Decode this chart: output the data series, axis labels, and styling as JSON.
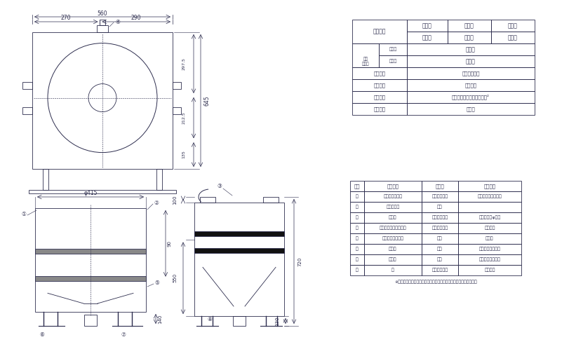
{
  "bg_color": "#ffffff",
  "line_color": "#2d2d4e",
  "table1": {
    "title": "外形寸法",
    "col_headers": [
      "間　口",
      "奥　行",
      "高　さ"
    ],
    "col_values": [
      "５６０",
      "６４５",
      "７２０"
    ],
    "rows": [
      {
        "label1": "水道",
        "label2": "給水口",
        "value": "２０Ａ"
      },
      {
        "label1": "接続口",
        "label2": "排水口",
        "value": "２０Ａ"
      },
      {
        "label1": "洗米能力",
        "label2": "",
        "value": "２２ｋｇ／回"
      },
      {
        "label1": "洗米時間",
        "label2": "",
        "value": "３～４分"
      },
      {
        "label1": "作動水圧",
        "label2": "",
        "value": "０．８～１．５ｋｇ／ｃｍ²"
      },
      {
        "label1": "製品重量",
        "label2": "",
        "value": "９ｋｇ"
      }
    ]
  },
  "table2": {
    "col_headers": [
      "番号",
      "品　　名",
      "材　質",
      "備　　考"
    ],
    "rows": [
      [
        "１",
        "本体（洗米槽）",
        "ＳＵＳ４３０",
        "ｔ０．８，ｔ１．０"
      ],
      [
        "２",
        "切換バルブ",
        "ＡＣ",
        ""
      ],
      [
        "３",
        "出米管",
        "ＳＵＳ４３０",
        "ｔ１．２　φ３８"
      ],
      [
        "４",
        "オーバーフローカバー",
        "ＳＵＳ４３０",
        "ｔ０．８"
      ],
      [
        "５",
        "オーバーフロー管",
        "塩ビ",
        "４０Ａ"
      ],
      [
        "６",
        "給水口",
        "ＢＣ",
        "三方ボールバルブ"
      ],
      [
        "７",
        "排水口",
        "ＢＣ",
        "三方ボールバルブ"
      ],
      [
        "８",
        "脚",
        "ＳＵＳ４３０",
        "ｔ１．２"
      ]
    ]
  },
  "note": "※　改善の為、仕様及び外観を予告なしに変更することがあります。"
}
